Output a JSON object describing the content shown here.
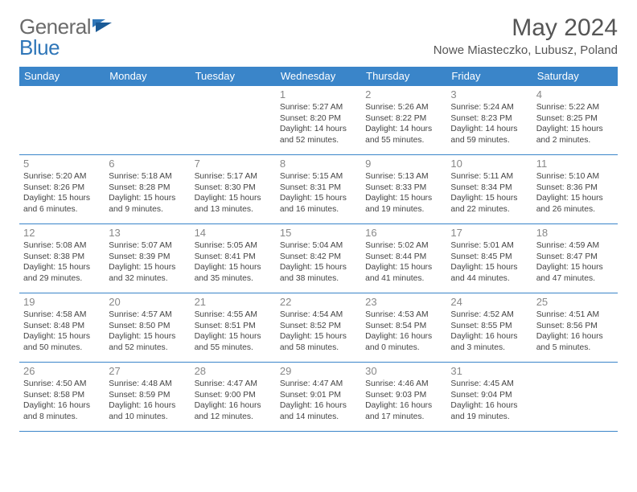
{
  "brand": {
    "part1": "General",
    "part2": "Blue"
  },
  "title": "May 2024",
  "location": "Nowe Miasteczko, Lubusz, Poland",
  "daynames": [
    "Sunday",
    "Monday",
    "Tuesday",
    "Wednesday",
    "Thursday",
    "Friday",
    "Saturday"
  ],
  "colors": {
    "header_bg": "#3a85c9",
    "header_text": "#ffffff",
    "border": "#3a85c9",
    "daynum": "#888888",
    "body_text": "#444444",
    "logo_gray": "#6b6b6b",
    "logo_blue": "#2f76b8"
  },
  "weeks": [
    [
      {
        "n": "",
        "sr": "",
        "ss": "",
        "dl": ""
      },
      {
        "n": "",
        "sr": "",
        "ss": "",
        "dl": ""
      },
      {
        "n": "",
        "sr": "",
        "ss": "",
        "dl": ""
      },
      {
        "n": "1",
        "sr": "Sunrise: 5:27 AM",
        "ss": "Sunset: 8:20 PM",
        "dl": "Daylight: 14 hours and 52 minutes."
      },
      {
        "n": "2",
        "sr": "Sunrise: 5:26 AM",
        "ss": "Sunset: 8:22 PM",
        "dl": "Daylight: 14 hours and 55 minutes."
      },
      {
        "n": "3",
        "sr": "Sunrise: 5:24 AM",
        "ss": "Sunset: 8:23 PM",
        "dl": "Daylight: 14 hours and 59 minutes."
      },
      {
        "n": "4",
        "sr": "Sunrise: 5:22 AM",
        "ss": "Sunset: 8:25 PM",
        "dl": "Daylight: 15 hours and 2 minutes."
      }
    ],
    [
      {
        "n": "5",
        "sr": "Sunrise: 5:20 AM",
        "ss": "Sunset: 8:26 PM",
        "dl": "Daylight: 15 hours and 6 minutes."
      },
      {
        "n": "6",
        "sr": "Sunrise: 5:18 AM",
        "ss": "Sunset: 8:28 PM",
        "dl": "Daylight: 15 hours and 9 minutes."
      },
      {
        "n": "7",
        "sr": "Sunrise: 5:17 AM",
        "ss": "Sunset: 8:30 PM",
        "dl": "Daylight: 15 hours and 13 minutes."
      },
      {
        "n": "8",
        "sr": "Sunrise: 5:15 AM",
        "ss": "Sunset: 8:31 PM",
        "dl": "Daylight: 15 hours and 16 minutes."
      },
      {
        "n": "9",
        "sr": "Sunrise: 5:13 AM",
        "ss": "Sunset: 8:33 PM",
        "dl": "Daylight: 15 hours and 19 minutes."
      },
      {
        "n": "10",
        "sr": "Sunrise: 5:11 AM",
        "ss": "Sunset: 8:34 PM",
        "dl": "Daylight: 15 hours and 22 minutes."
      },
      {
        "n": "11",
        "sr": "Sunrise: 5:10 AM",
        "ss": "Sunset: 8:36 PM",
        "dl": "Daylight: 15 hours and 26 minutes."
      }
    ],
    [
      {
        "n": "12",
        "sr": "Sunrise: 5:08 AM",
        "ss": "Sunset: 8:38 PM",
        "dl": "Daylight: 15 hours and 29 minutes."
      },
      {
        "n": "13",
        "sr": "Sunrise: 5:07 AM",
        "ss": "Sunset: 8:39 PM",
        "dl": "Daylight: 15 hours and 32 minutes."
      },
      {
        "n": "14",
        "sr": "Sunrise: 5:05 AM",
        "ss": "Sunset: 8:41 PM",
        "dl": "Daylight: 15 hours and 35 minutes."
      },
      {
        "n": "15",
        "sr": "Sunrise: 5:04 AM",
        "ss": "Sunset: 8:42 PM",
        "dl": "Daylight: 15 hours and 38 minutes."
      },
      {
        "n": "16",
        "sr": "Sunrise: 5:02 AM",
        "ss": "Sunset: 8:44 PM",
        "dl": "Daylight: 15 hours and 41 minutes."
      },
      {
        "n": "17",
        "sr": "Sunrise: 5:01 AM",
        "ss": "Sunset: 8:45 PM",
        "dl": "Daylight: 15 hours and 44 minutes."
      },
      {
        "n": "18",
        "sr": "Sunrise: 4:59 AM",
        "ss": "Sunset: 8:47 PM",
        "dl": "Daylight: 15 hours and 47 minutes."
      }
    ],
    [
      {
        "n": "19",
        "sr": "Sunrise: 4:58 AM",
        "ss": "Sunset: 8:48 PM",
        "dl": "Daylight: 15 hours and 50 minutes."
      },
      {
        "n": "20",
        "sr": "Sunrise: 4:57 AM",
        "ss": "Sunset: 8:50 PM",
        "dl": "Daylight: 15 hours and 52 minutes."
      },
      {
        "n": "21",
        "sr": "Sunrise: 4:55 AM",
        "ss": "Sunset: 8:51 PM",
        "dl": "Daylight: 15 hours and 55 minutes."
      },
      {
        "n": "22",
        "sr": "Sunrise: 4:54 AM",
        "ss": "Sunset: 8:52 PM",
        "dl": "Daylight: 15 hours and 58 minutes."
      },
      {
        "n": "23",
        "sr": "Sunrise: 4:53 AM",
        "ss": "Sunset: 8:54 PM",
        "dl": "Daylight: 16 hours and 0 minutes."
      },
      {
        "n": "24",
        "sr": "Sunrise: 4:52 AM",
        "ss": "Sunset: 8:55 PM",
        "dl": "Daylight: 16 hours and 3 minutes."
      },
      {
        "n": "25",
        "sr": "Sunrise: 4:51 AM",
        "ss": "Sunset: 8:56 PM",
        "dl": "Daylight: 16 hours and 5 minutes."
      }
    ],
    [
      {
        "n": "26",
        "sr": "Sunrise: 4:50 AM",
        "ss": "Sunset: 8:58 PM",
        "dl": "Daylight: 16 hours and 8 minutes."
      },
      {
        "n": "27",
        "sr": "Sunrise: 4:48 AM",
        "ss": "Sunset: 8:59 PM",
        "dl": "Daylight: 16 hours and 10 minutes."
      },
      {
        "n": "28",
        "sr": "Sunrise: 4:47 AM",
        "ss": "Sunset: 9:00 PM",
        "dl": "Daylight: 16 hours and 12 minutes."
      },
      {
        "n": "29",
        "sr": "Sunrise: 4:47 AM",
        "ss": "Sunset: 9:01 PM",
        "dl": "Daylight: 16 hours and 14 minutes."
      },
      {
        "n": "30",
        "sr": "Sunrise: 4:46 AM",
        "ss": "Sunset: 9:03 PM",
        "dl": "Daylight: 16 hours and 17 minutes."
      },
      {
        "n": "31",
        "sr": "Sunrise: 4:45 AM",
        "ss": "Sunset: 9:04 PM",
        "dl": "Daylight: 16 hours and 19 minutes."
      },
      {
        "n": "",
        "sr": "",
        "ss": "",
        "dl": ""
      }
    ]
  ]
}
